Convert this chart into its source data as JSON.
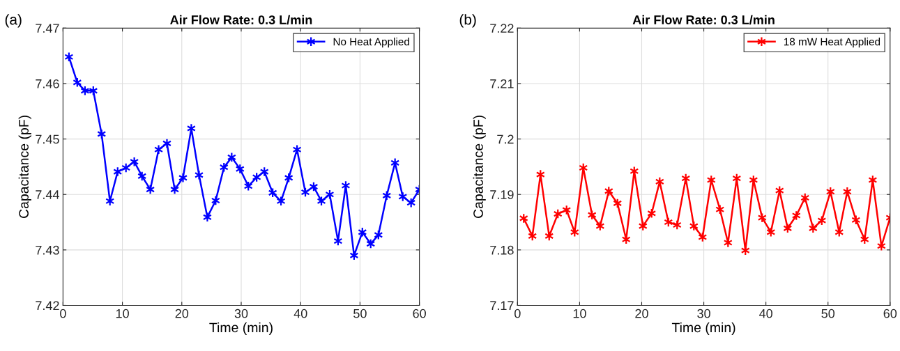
{
  "chart_data": [
    {
      "type": "line",
      "title": "Air Flow Rate: 0.3 L/min",
      "xlabel": "Time (min)",
      "ylabel": "Capacitance (pF)",
      "annotations": [
        "(a)"
      ],
      "x": [
        1,
        2.4,
        3.7,
        5.1,
        6.5,
        7.9,
        9.2,
        10.6,
        12.0,
        13.3,
        14.7,
        16.1,
        17.5,
        18.8,
        20.2,
        21.6,
        22.9,
        24.3,
        25.7,
        27.1,
        28.4,
        29.8,
        31.2,
        32.6,
        33.9,
        35.3,
        36.7,
        38.0,
        39.4,
        40.8,
        42.2,
        43.5,
        44.9,
        46.3,
        47.6,
        49.0,
        50.4,
        51.8,
        53.1,
        54.5,
        55.9,
        57.2,
        58.6,
        60.0
      ],
      "series": [
        {
          "name": "No Heat Applied",
          "color": "#0000ff",
          "values": [
            7.4648,
            7.4602,
            7.4587,
            7.4587,
            7.4509,
            7.4388,
            7.4441,
            7.4448,
            7.4459,
            7.4433,
            7.4409,
            7.4481,
            7.4492,
            7.4409,
            7.443,
            7.4519,
            7.4435,
            7.4359,
            7.4389,
            7.4449,
            7.4467,
            7.4446,
            7.4415,
            7.4431,
            7.4441,
            7.4403,
            7.4388,
            7.443,
            7.4481,
            7.4404,
            7.4414,
            7.4388,
            7.44,
            7.4316,
            7.4416,
            7.429,
            7.4332,
            7.4311,
            7.4327,
            7.4398,
            7.4457,
            7.4396,
            7.4385,
            7.4409
          ]
        }
      ],
      "xlim": [
        0,
        60
      ],
      "xticks": [
        0,
        10,
        20,
        30,
        40,
        50,
        60
      ],
      "ylim": [
        7.42,
        7.47
      ],
      "yticks": [
        7.42,
        7.43,
        7.44,
        7.45,
        7.46,
        7.47
      ],
      "grid": true,
      "legend": "top right",
      "marker": "cross",
      "line_style": "solid"
    },
    {
      "type": "line",
      "title": "Air Flow Rate: 0.3 L/min",
      "xlabel": "Time (min)",
      "ylabel": "Capacitance (pF)",
      "annotations": [
        "(b)"
      ],
      "x": [
        1,
        2.4,
        3.7,
        5.1,
        6.5,
        7.9,
        9.2,
        10.6,
        12.0,
        13.3,
        14.7,
        16.1,
        17.5,
        18.8,
        20.2,
        21.6,
        22.9,
        24.3,
        25.7,
        27.1,
        28.4,
        29.8,
        31.2,
        32.6,
        33.9,
        35.3,
        36.7,
        38.0,
        39.4,
        40.8,
        42.2,
        43.5,
        44.9,
        46.3,
        47.6,
        49.0,
        50.4,
        51.8,
        53.1,
        54.5,
        55.9,
        57.2,
        58.6,
        60.0
      ],
      "series": [
        {
          "name": "18 mW Heat Applied",
          "color": "#ff0000",
          "values": [
            7.1857,
            7.1825,
            7.1936,
            7.1825,
            7.1865,
            7.1872,
            7.1832,
            7.1948,
            7.1863,
            7.1843,
            7.1906,
            7.1884,
            7.1819,
            7.1942,
            7.1843,
            7.1866,
            7.1923,
            7.185,
            7.1845,
            7.1929,
            7.1843,
            7.1823,
            7.1926,
            7.1873,
            7.1813,
            7.1929,
            7.1799,
            7.1926,
            7.1858,
            7.1832,
            7.1907,
            7.1839,
            7.1862,
            7.1894,
            7.1839,
            7.1853,
            7.1905,
            7.1832,
            7.1905,
            7.1854,
            7.1819,
            7.1926,
            7.1807,
            7.1858
          ]
        }
      ],
      "xlim": [
        0,
        60
      ],
      "xticks": [
        0,
        10,
        20,
        30,
        40,
        50,
        60
      ],
      "ylim": [
        7.17,
        7.22
      ],
      "yticks": [
        7.17,
        7.18,
        7.19,
        7.2,
        7.21,
        7.22
      ],
      "grid": true,
      "legend": "top right",
      "marker": "cross",
      "line_style": "solid"
    }
  ]
}
